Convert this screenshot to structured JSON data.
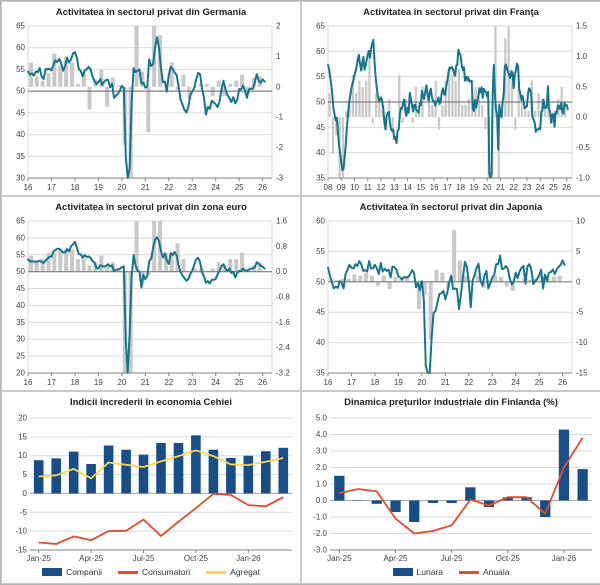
{
  "colors": {
    "pmi_line": "#17748a",
    "bar_gray": "#c9c9c9",
    "grid": "#d9d9d9",
    "ref_line": "#7f7f7f",
    "axis": "#808080",
    "text": "#3f3f3f",
    "bar_blue": "#174e87",
    "line_red": "#e6492e",
    "line_yellow": "#ffd34f"
  },
  "chart_data": [
    {
      "type": "line",
      "variant": "pmi",
      "title": "Activitatea în sectorul privat din Germania",
      "xlabel": "",
      "ylabel": "",
      "x_min": 2016,
      "x_max": 2026.4,
      "x_start": 2016,
      "ref_line": 50,
      "left_ticks": [
        "30",
        "35",
        "40",
        "45",
        "50",
        "55",
        "60",
        "65"
      ],
      "right_ticks": [
        "-3",
        "-2",
        "-1",
        "0",
        "1",
        "2"
      ],
      "x_ticks": [
        "16",
        "17",
        "18",
        "19",
        "20",
        "21",
        "22",
        "23",
        "24",
        "25",
        "26"
      ],
      "line_values": [
        54.5,
        53.8,
        54.1,
        53.6,
        54.5,
        54.4,
        55.3,
        53.3,
        52.8,
        55.1,
        55.0,
        55.2,
        54.8,
        56.1,
        57.1,
        56.7,
        57.4,
        56.4,
        54.7,
        55.8,
        57.7,
        56.6,
        57.3,
        58.7,
        59.0,
        57.6,
        55.1,
        54.6,
        53.4,
        54.8,
        55.0,
        55.6,
        55.0,
        53.4,
        52.3,
        51.6,
        52.1,
        52.8,
        51.4,
        52.2,
        52.6,
        52.6,
        50.9,
        51.7,
        48.5,
        48.9,
        49.4,
        50.2,
        51.2,
        50.7,
        35.0,
        30.0,
        32.3,
        47.0,
        55.3,
        54.4,
        54.7,
        55.0,
        51.7,
        52.0,
        50.8,
        51.1,
        57.3,
        55.8,
        56.2,
        60.1,
        62.4,
        60.0,
        55.5,
        52.0,
        52.2,
        49.9,
        53.8,
        55.6,
        55.1,
        54.3,
        53.7,
        51.3,
        48.1,
        46.9,
        45.7,
        45.1,
        46.3,
        49.0,
        49.9,
        50.7,
        52.6,
        54.2,
        53.9,
        50.6,
        48.5,
        44.6,
        46.4,
        45.9,
        47.8,
        47.4,
        47.0,
        46.3,
        47.7,
        50.6,
        52.4,
        50.4,
        49.1,
        48.4,
        47.5,
        48.6,
        47.2,
        48.0,
        50.5,
        50.4,
        51.3,
        50.1,
        48.5,
        50.4,
        50.6,
        50.5,
        52.0,
        53.9,
        52.4,
        51.9,
        52.7,
        52.2
      ],
      "bar_start": 2016,
      "bar_values": [
        0.8,
        0.35,
        0.2,
        0.45,
        1.1,
        0.7,
        1.0,
        0.8,
        0.1,
        0.5,
        -0.75,
        0.25,
        0.55,
        -0.65,
        0.3,
        0.05,
        -1.9,
        -9.7,
        8.7,
        0.5,
        -1.5,
        2.2,
        1.7,
        0.0,
        0.8,
        -0.1,
        0.4,
        -0.4,
        0.0,
        0.1,
        0.1,
        -0.3,
        0.2,
        -0.3,
        0.1,
        0.2,
        0.4,
        -0.2,
        0.3,
        0.35
      ]
    },
    {
      "type": "line",
      "variant": "pmi",
      "title": "Activitatea în sectorul privat din Franţa",
      "xlabel": "",
      "ylabel": "",
      "x_min": 2008,
      "x_max": 2026.4,
      "x_start": 2008,
      "ref_line": 50,
      "left_ticks": [
        "35",
        "40",
        "45",
        "50",
        "55",
        "60",
        "65"
      ],
      "right_ticks": [
        "-1.0",
        "-0.5",
        "0.0",
        "0.5",
        "1.0",
        "1.5"
      ],
      "x_ticks": [
        "08",
        "09",
        "10",
        "11",
        "12",
        "13",
        "14",
        "15",
        "16",
        "17",
        "18",
        "19",
        "20",
        "21",
        "22",
        "23",
        "24",
        "25",
        "26"
      ],
      "line_values": [
        57.3,
        56.5,
        54.9,
        53.4,
        51.3,
        48.6,
        47.5,
        46.4,
        46.9,
        44.2,
        41.3,
        39.8,
        38.1,
        36.5,
        36.8,
        38.9,
        41.4,
        44.7,
        47.3,
        49.6,
        51.2,
        52.5,
        53.6,
        54.2,
        55.3,
        56.1,
        57.0,
        58.5,
        59.3,
        57.5,
        56.2,
        57.8,
        58.9,
        56.4,
        57.1,
        58.3,
        59.4,
        60.1,
        58.7,
        60.6,
        61.5,
        62.3,
        58.4,
        55.2,
        53.1,
        51.4,
        50.2,
        50.5,
        50.9,
        50.2,
        48.7,
        45.9,
        44.6,
        47.3,
        47.9,
        48.0,
        45.9,
        44.6,
        44.3,
        44.6,
        42.7,
        43.1,
        41.9,
        44.3,
        44.6,
        47.4,
        48.8,
        48.7,
        49.9,
        50.5,
        48.0,
        47.3,
        48.9,
        47.9,
        51.8,
        50.6,
        49.3,
        48.1,
        49.4,
        49.5,
        48.4,
        48.2,
        47.9,
        49.7,
        49.3,
        52.2,
        51.5,
        50.6,
        52.0,
        53.3,
        51.5,
        50.2,
        51.9,
        52.6,
        51.0,
        50.1,
        50.2,
        49.3,
        50.0,
        50.2,
        50.9,
        49.6,
        50.1,
        51.9,
        52.7,
        51.6,
        51.4,
        53.1,
        54.1,
        55.9,
        56.8,
        56.6,
        56.9,
        56.6,
        55.7,
        55.2,
        57.1,
        57.4,
        60.3,
        59.6,
        59.2,
        57.3,
        56.3,
        56.9,
        54.2,
        55.0,
        54.3,
        54.9,
        54.0,
        54.1,
        54.2,
        48.7,
        48.2,
        50.4,
        48.9,
        50.1,
        51.2,
        52.7,
        51.9,
        52.9,
        50.8,
        52.6,
        52.1,
        52.0,
        51.1,
        52.0,
        36.0,
        34.6,
        36.0,
        51.7,
        57.3,
        51.6,
        48.5,
        47.5,
        40.6,
        49.5,
        47.7,
        47.0,
        50.0,
        51.6,
        57.0,
        57.4,
        56.6,
        55.9,
        55.3,
        54.7,
        56.1,
        55.8,
        52.7,
        55.5,
        56.3,
        57.6,
        57.0,
        52.5,
        51.7,
        50.4,
        51.2,
        50.2,
        48.7,
        49.1,
        49.1,
        51.7,
        52.7,
        52.4,
        51.2,
        47.2,
        46.6,
        46.0,
        44.1,
        44.6,
        44.6,
        44.8,
        44.6,
        48.1,
        48.3,
        50.5,
        48.9,
        48.8,
        49.1,
        53.1,
        48.6,
        48.1,
        45.9,
        47.5,
        47.6,
        45.1,
        48.0,
        47.8,
        49.3,
        49.2,
        48.6,
        49.8,
        48.1,
        47.7,
        49.8,
        49.3,
        49.4,
        48.6
      ],
      "bar_start": 2008,
      "bar_values": [
        0.4,
        -0.6,
        -0.3,
        -1.6,
        -1.6,
        0.1,
        0.2,
        0.7,
        0.4,
        0.6,
        0.5,
        0.6,
        1.1,
        -0.1,
        0.4,
        0.3,
        0.2,
        -0.2,
        0.3,
        -0.2,
        0.0,
        0.7,
        -0.1,
        0.3,
        0.0,
        -0.1,
        0.5,
        0.1,
        0.5,
        0.0,
        0.4,
        0.2,
        0.6,
        -0.2,
        0.2,
        0.6,
        0.8,
        0.7,
        0.6,
        0.8,
        0.2,
        0.2,
        0.3,
        0.4,
        0.5,
        0.4,
        0.2,
        -0.2,
        -5.7,
        -13.5,
        18.5,
        -1.1,
        0.1,
        1.3,
        3.3,
        0.6,
        -0.2,
        0.5,
        0.3,
        0.1,
        0.1,
        0.6,
        0.1,
        0.4,
        0.3,
        0.2,
        0.4,
        -0.1,
        0.1,
        0.3,
        0.5,
        0.2
      ]
    },
    {
      "type": "line",
      "variant": "pmi",
      "title": "Activitatea în sectorul privat din zona euro",
      "xlabel": "",
      "ylabel": "",
      "x_min": 2016,
      "x_max": 2026.4,
      "x_start": 2016,
      "ref_line": 50,
      "left_ticks": [
        "20",
        "25",
        "30",
        "35",
        "40",
        "45",
        "50",
        "55",
        "60",
        "65"
      ],
      "right_ticks": [
        "-3.2",
        "-2.4",
        "-1.6",
        "-0.8",
        "0.0",
        "0.8",
        "1.6"
      ],
      "x_ticks": [
        "16",
        "17",
        "18",
        "19",
        "20",
        "21",
        "22",
        "23",
        "24",
        "25",
        "26"
      ],
      "line_values": [
        53.6,
        53.0,
        53.1,
        53.0,
        52.9,
        53.1,
        53.2,
        52.9,
        52.6,
        53.3,
        53.9,
        54.4,
        54.4,
        56.0,
        56.4,
        56.8,
        56.8,
        56.3,
        55.7,
        55.7,
        56.7,
        56.0,
        57.5,
        58.1,
        58.8,
        57.1,
        55.2,
        55.1,
        54.1,
        54.9,
        54.3,
        54.5,
        54.1,
        53.1,
        52.7,
        51.1,
        51.0,
        51.9,
        51.6,
        51.5,
        51.8,
        52.2,
        51.5,
        51.9,
        50.1,
        50.6,
        50.6,
        50.9,
        51.3,
        51.6,
        29.7,
        19.8,
        31.9,
        48.5,
        54.9,
        51.9,
        50.4,
        50.0,
        45.3,
        49.1,
        47.8,
        48.8,
        53.2,
        53.8,
        57.1,
        59.5,
        60.2,
        59.0,
        56.2,
        54.2,
        55.4,
        53.3,
        52.3,
        55.5,
        54.9,
        55.8,
        54.8,
        52.0,
        49.9,
        48.9,
        48.1,
        47.3,
        47.8,
        49.3,
        50.3,
        52.0,
        53.7,
        54.1,
        52.8,
        49.9,
        48.6,
        46.7,
        47.2,
        46.5,
        47.6,
        47.6,
        47.9,
        49.2,
        50.3,
        51.7,
        52.2,
        50.9,
        50.2,
        51.0,
        49.6,
        50.0,
        48.3,
        49.6,
        50.2,
        50.2,
        50.9,
        50.4,
        50.2,
        50.6,
        50.9,
        51.0,
        51.2,
        52.8,
        52.3,
        51.8,
        51.5,
        50.9
      ],
      "bar_start": 2016,
      "bar_values": [
        0.5,
        0.3,
        0.4,
        0.6,
        0.6,
        0.7,
        0.7,
        0.7,
        0.4,
        0.4,
        0.2,
        0.3,
        0.5,
        0.2,
        0.3,
        0.1,
        -3.5,
        -11.5,
        12.5,
        -0.4,
        -0.1,
        2.2,
        2.3,
        0.6,
        0.6,
        0.9,
        0.4,
        0.0,
        0.1,
        0.1,
        0.0,
        0.1,
        0.3,
        0.2,
        0.4,
        0.4,
        0.6,
        0.1,
        0.2,
        0.3
      ]
    },
    {
      "type": "line",
      "variant": "pmi",
      "title": "Activitatea în sectorul privat din Japonia",
      "xlabel": "",
      "ylabel": "",
      "x_min": 2016,
      "x_max": 2026.4,
      "x_start": 2016,
      "ref_line": 50,
      "left_ticks": [
        "35",
        "40",
        "45",
        "50",
        "55",
        "60"
      ],
      "right_ticks": [
        "-15",
        "-10",
        "-5",
        "0",
        "5",
        "10"
      ],
      "x_ticks": [
        "16",
        "17",
        "18",
        "19",
        "20",
        "21",
        "22",
        "23",
        "24",
        "25",
        "26"
      ],
      "line_values": [
        52.3,
        51.0,
        49.9,
        48.9,
        49.2,
        49.0,
        50.1,
        49.8,
        48.9,
        51.3,
        52.0,
        52.8,
        52.3,
        52.2,
        52.9,
        52.6,
        53.4,
        52.9,
        51.8,
        51.9,
        51.7,
        53.4,
        52.2,
        52.2,
        52.8,
        52.2,
        51.3,
        53.1,
        51.7,
        52.1,
        51.8,
        52.0,
        50.7,
        52.5,
        52.4,
        52.0,
        50.9,
        50.7,
        50.4,
        50.8,
        50.7,
        50.8,
        51.2,
        51.9,
        51.5,
        49.1,
        49.8,
        48.6,
        50.1,
        47.0,
        36.2,
        34.7,
        34.7,
        40.8,
        44.9,
        45.2,
        46.6,
        48.0,
        48.1,
        48.5,
        47.1,
        48.2,
        49.9,
        51.0,
        48.8,
        48.9,
        48.8,
        45.5,
        47.9,
        50.7,
        53.3,
        52.5,
        49.9,
        45.8,
        50.3,
        51.1,
        52.3,
        53.0,
        50.2,
        49.4,
        51.0,
        51.8,
        48.9,
        49.7,
        50.7,
        51.1,
        52.9,
        52.9,
        54.3,
        52.1,
        52.2,
        52.6,
        52.1,
        50.5,
        49.6,
        50.0,
        51.5,
        50.6,
        51.7,
        52.3,
        52.6,
        49.7,
        52.5,
        52.9,
        52.0,
        49.6,
        50.1,
        50.5,
        51.1,
        52.0,
        48.9,
        51.2,
        50.2,
        51.5,
        51.6,
        52.0,
        51.3,
        52.0,
        52.5,
        52.8,
        53.5,
        52.8
      ],
      "bar_start": 2016,
      "bar_values": [
        0.5,
        0.3,
        0.5,
        0.5,
        1.2,
        1.0,
        1.5,
        1.0,
        -0.7,
        1.0,
        -1.2,
        0.8,
        0.5,
        0.8,
        0.2,
        -4.5,
        -2.2,
        -9.5,
        2.0,
        1.5,
        -1.0,
        8.5,
        3.5,
        1.0,
        0.2,
        1.0,
        -1.0,
        0.2,
        1.0,
        0.8,
        -0.8,
        -1.5,
        0.2,
        0.5,
        0.3,
        0.5,
        1.0,
        0.5,
        0.8,
        1.0
      ]
    },
    {
      "type": "bar",
      "variant": "combo",
      "title": "Indicii încrederii în economia Cehiei",
      "xlabel": "",
      "ylabel": "",
      "ylim": [
        -15,
        20
      ],
      "y_ticks": [
        "20",
        "15",
        "10",
        "5",
        "0",
        "-5",
        "-10",
        "-15"
      ],
      "categories": [
        "Jan-25",
        "Feb-25",
        "Mar-25",
        "Apr-25",
        "May-25",
        "Jun-25",
        "Jul-25",
        "Aug-25",
        "Sep-25",
        "Oct-25",
        "Nov-25",
        "Dec-25",
        "Jan-26",
        "Feb-26",
        "Mar-26"
      ],
      "x_tick_idx": [
        0,
        3,
        6,
        9,
        12
      ],
      "x_tick_labels": [
        "Jan-25",
        "Apr-25",
        "Jul-25",
        "Oct-25",
        "Jan-26"
      ],
      "series": [
        {
          "name": "Companii",
          "kind": "bar",
          "color_key": "bar_blue",
          "values": [
            8.8,
            9.3,
            11.1,
            7.8,
            12.7,
            11.6,
            10.3,
            13.4,
            13.4,
            15.4,
            11.6,
            9.4,
            10.0,
            11.2,
            12.1
          ]
        },
        {
          "name": "Consumatori",
          "kind": "line",
          "color_key": "line_red",
          "values": [
            -13.0,
            -13.4,
            -11.4,
            -12.4,
            -10.0,
            -9.9,
            -6.9,
            -11.3,
            -7.5,
            -3.9,
            -0.1,
            -0.4,
            -3.1,
            -3.4,
            -1.0
          ]
        },
        {
          "name": "Agregat",
          "kind": "line",
          "color_key": "line_yellow",
          "values": [
            4.5,
            4.8,
            6.5,
            4.0,
            8.2,
            7.6,
            7.0,
            8.5,
            9.9,
            11.4,
            9.9,
            7.7,
            7.5,
            8.4,
            9.4
          ]
        }
      ]
    },
    {
      "type": "bar",
      "variant": "combo",
      "title": "Dinamica preţurilor industriale din Finlanda (%)",
      "xlabel": "",
      "ylabel": "",
      "ylim": [
        -3,
        5
      ],
      "y_ticks": [
        "5.0",
        "4.0",
        "3.0",
        "2.0",
        "1.0",
        "0.0",
        "-1.0",
        "-2.0",
        "-3.0"
      ],
      "categories": [
        "Jan-25",
        "Feb-25",
        "Mar-25",
        "Apr-25",
        "May-25",
        "Jun-25",
        "Jul-25",
        "Aug-25",
        "Sep-25",
        "Oct-25",
        "Nov-25",
        "Dec-25",
        "Jan-26",
        "Feb-26"
      ],
      "x_tick_idx": [
        0,
        3,
        6,
        9,
        12
      ],
      "x_tick_labels": [
        "Jan-25",
        "Apr-25",
        "Jul-25",
        "Oct-25",
        "Jan-26"
      ],
      "series": [
        {
          "name": "Lunara",
          "kind": "bar",
          "color_key": "bar_blue",
          "values": [
            1.5,
            0.0,
            -0.2,
            -0.7,
            -1.3,
            -0.15,
            -0.15,
            0.8,
            -0.4,
            0.2,
            0.2,
            -1.0,
            4.3,
            1.9
          ]
        },
        {
          "name": "Anuala",
          "kind": "line",
          "color_key": "line_red",
          "values": [
            0.45,
            0.7,
            0.55,
            -1.1,
            -2.0,
            -1.85,
            -1.5,
            0.05,
            -0.3,
            0.2,
            0.2,
            -0.8,
            2.0,
            3.8
          ]
        }
      ]
    }
  ]
}
